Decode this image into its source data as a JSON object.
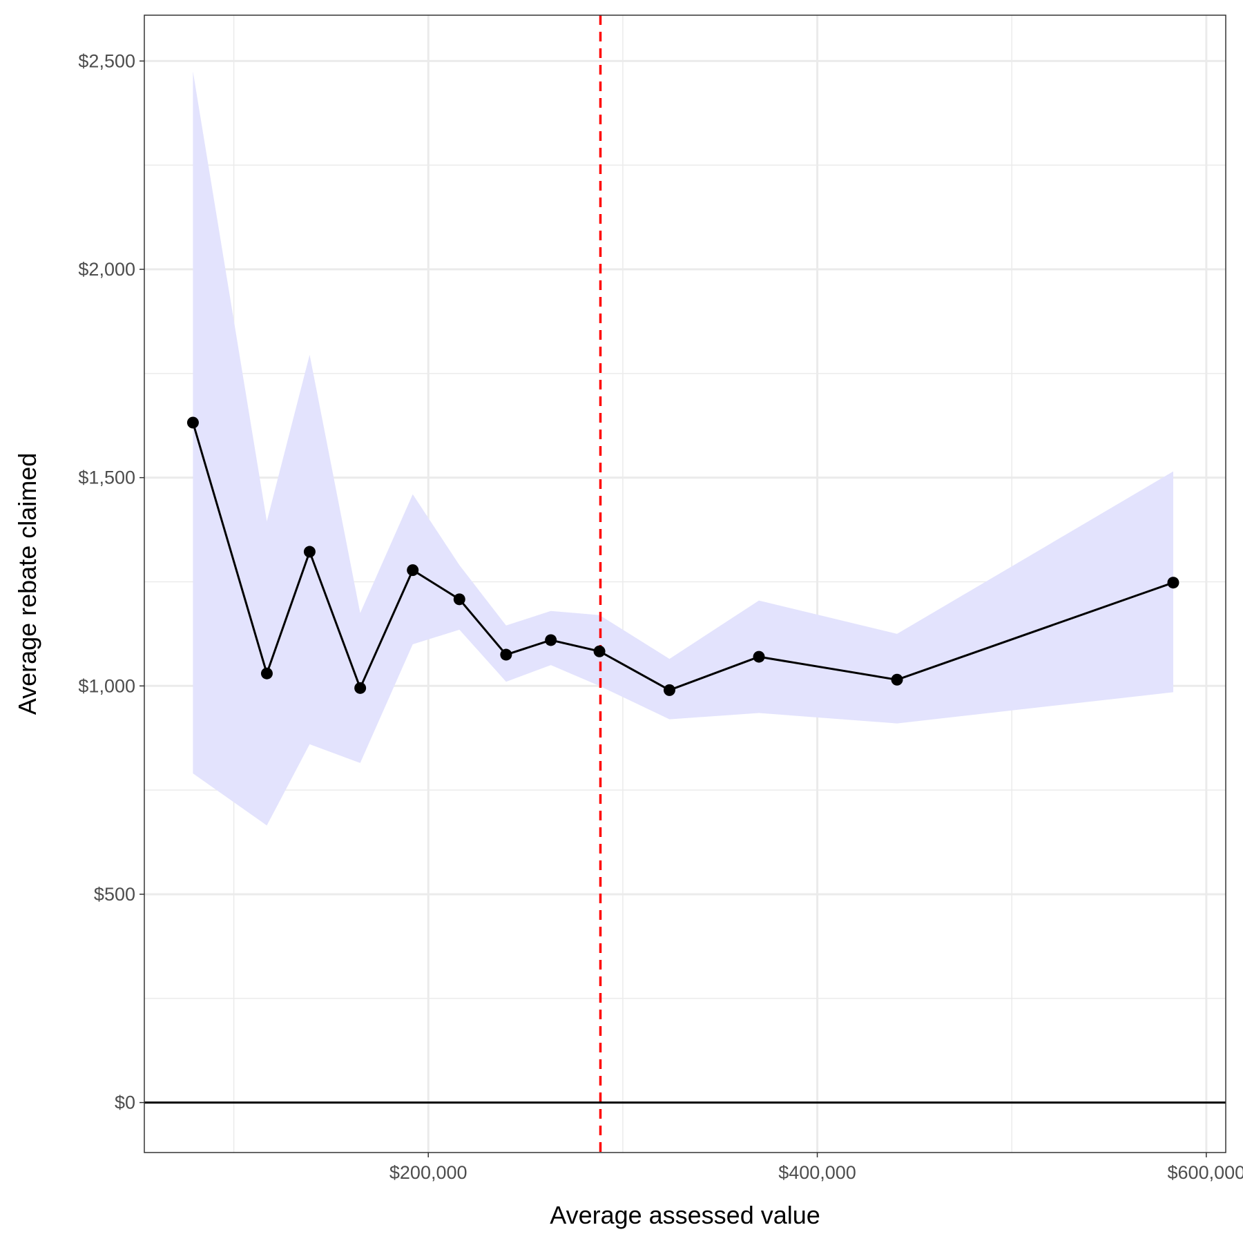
{
  "chart_data": {
    "type": "line",
    "xlabel": "Average assessed value",
    "ylabel": "Average rebate claimed",
    "x_ticks": [
      200000,
      400000,
      600000
    ],
    "x_tick_labels": [
      "$200,000",
      "$400,000",
      "$600,000"
    ],
    "y_ticks": [
      0,
      500,
      1000,
      1500,
      2000,
      2500
    ],
    "y_tick_labels": [
      "$0",
      "$500",
      "$1,000",
      "$1,500",
      "$2,000",
      "$2,500"
    ],
    "xlim": [
      54000,
      610000
    ],
    "ylim": [
      -120,
      2610
    ],
    "grid": true,
    "reference_lines": [
      {
        "axis": "x",
        "value": 288500,
        "style": "dashed",
        "color": "#ff0000"
      },
      {
        "axis": "y",
        "value": 0,
        "style": "solid",
        "color": "#000000"
      }
    ],
    "series": [
      {
        "x": [
          79000,
          117000,
          139000,
          165000,
          192000,
          216000,
          240000,
          263000,
          288000,
          324000,
          370000,
          441000,
          583000
        ],
        "y": [
          1632,
          1030,
          1322,
          995,
          1278,
          1208,
          1075,
          1110,
          1083,
          990,
          1070,
          1015,
          1248
        ],
        "lower": [
          790,
          665,
          860,
          815,
          1100,
          1135,
          1010,
          1050,
          1000,
          920,
          935,
          910,
          985
        ],
        "upper": [
          2475,
          1395,
          1795,
          1175,
          1460,
          1290,
          1145,
          1180,
          1170,
          1065,
          1205,
          1125,
          1515
        ]
      }
    ],
    "colors": {
      "line": "#000000",
      "points": "#000000",
      "ribbon": "#e3e3fd",
      "reference": "#ff0000",
      "grid": "#ebebeb"
    }
  }
}
